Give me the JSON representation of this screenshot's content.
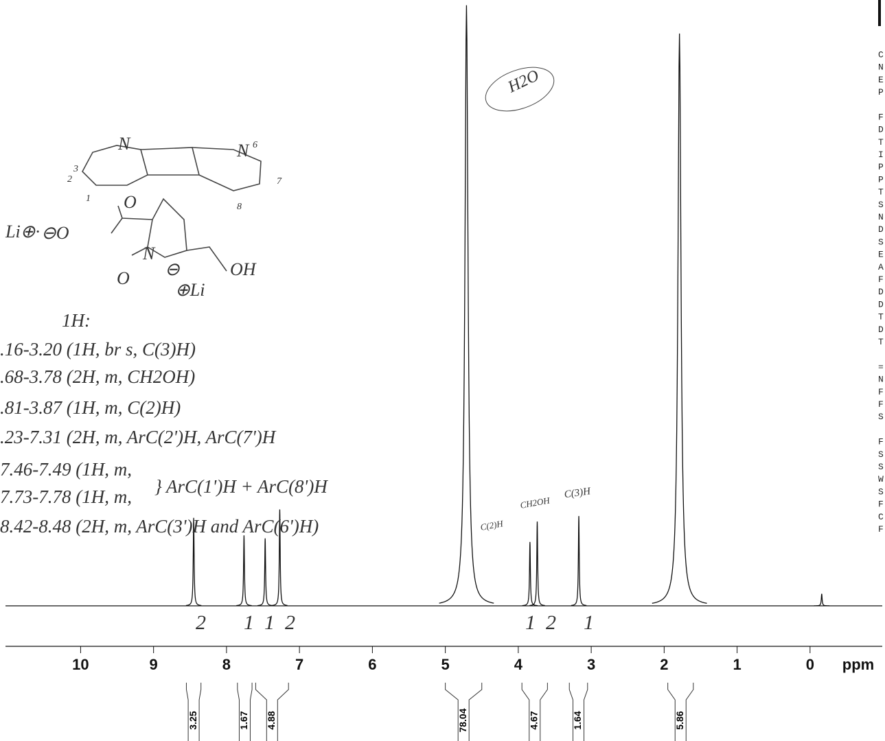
{
  "chart_data": {
    "type": "nmr",
    "x_label": "ppm",
    "xlim": [
      11.03,
      -0.99
    ],
    "xticks": [
      10,
      9,
      8,
      7,
      6,
      5,
      4,
      3,
      2,
      1,
      0
    ],
    "ylim": [
      0,
      100
    ],
    "color": "#111111",
    "peaks": {
      "x": [
        8.45,
        7.76,
        7.47,
        7.27,
        4.71,
        3.84,
        3.74,
        3.17,
        1.79,
        -0.16
      ],
      "values": [
        14.6,
        11.7,
        11.2,
        16,
        99.7,
        10.6,
        14,
        14.9,
        95,
        2
      ]
    },
    "integrals": {
      "from": [
        8.55,
        7.85,
        7.6,
        5.0,
        3.95,
        3.3,
        1.95
      ],
      "to": [
        8.35,
        7.65,
        7.15,
        4.5,
        3.6,
        3.05,
        1.6
      ],
      "values": [
        3.25,
        1.67,
        4.88,
        78.04,
        4.67,
        1.64,
        5.86
      ]
    },
    "peak_annotations": [
      "H2O",
      "C(2)H",
      "CH2OH",
      "C(3)H"
    ],
    "hand_integrals": [
      "2",
      "1",
      "1",
      "2",
      "1",
      "2",
      "1"
    ],
    "notes": [
      "1H:",
      ".16-3.20 (1H, br s, C(3)H)",
      ".68-3.78 (2H, m, CH2OH)",
      ".81-3.87 (1H, m, C(2)H)",
      ".23-7.31 (2H, m, ArC(2')H, ArC(7')H",
      "7.46-7.49 (1H, m,",
      "7.73-7.78 (1H, m,",
      "} ArC(1')H + ArC(8')H",
      "8.42-8.48 (2H, m, ArC(3')H and ArC(6')H)"
    ],
    "structure_labels": [
      "N",
      "N",
      "3",
      "2",
      "1",
      "6",
      "7",
      "8",
      "Li⊕·",
      "⊖O",
      "O",
      "O",
      "N",
      "⊖",
      "OH",
      "⊕Li"
    ],
    "side_text": [
      "C",
      "N",
      "E",
      "P",
      "",
      "F",
      "D",
      "T",
      "I",
      "P",
      "P",
      "T",
      "S",
      "N",
      "D",
      "S",
      "E",
      "A",
      "F",
      "D",
      "D",
      "T",
      "D",
      "T",
      "",
      "=",
      "N",
      "F",
      "F",
      "S",
      "",
      "F",
      "S",
      "S",
      "W",
      "S",
      "F",
      "C",
      "F"
    ]
  }
}
